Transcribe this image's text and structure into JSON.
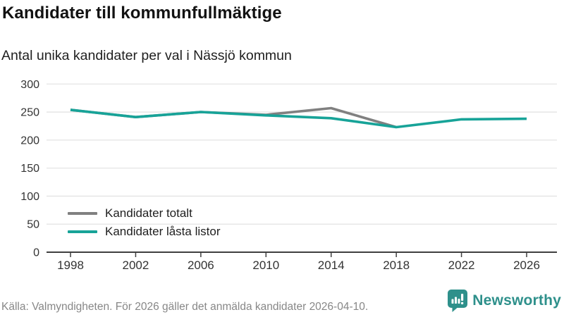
{
  "header": {
    "title": "Kandidater till kommunfullmäktige",
    "subtitle": "Antal unika kandidater per val i Nässjö kommun"
  },
  "chart_data": {
    "type": "line",
    "title": "Kandidater till kommunfullmäktige",
    "subtitle": "Antal unika kandidater per val i Nässjö kommun",
    "categories": [
      "1998",
      "2002",
      "2006",
      "2010",
      "2014",
      "2018",
      "2022",
      "2026"
    ],
    "series": [
      {
        "name": "Kandidater totalt",
        "color": "#808080",
        "values": [
          254,
          241,
          250,
          245,
          257,
          223,
          null,
          null
        ]
      },
      {
        "name": "Kandidater låsta listor",
        "color": "#17a398",
        "values": [
          254,
          241,
          250,
          244,
          239,
          223,
          237,
          238
        ]
      }
    ],
    "xlabel": "",
    "ylabel": "",
    "ylim": [
      0,
      300
    ],
    "yticks": [
      0,
      50,
      100,
      150,
      200,
      250,
      300
    ],
    "grid": "horizontal",
    "legend_position": "inside-bottom-left"
  },
  "footer": {
    "source": "Källa: Valmyndigheten. För 2026 gäller det anmälda kandidater 2026-04-10.",
    "brand_name": "Newsworthy"
  },
  "colors": {
    "series_total": "#808080",
    "series_locked_lists": "#17a398",
    "brand_teal": "#2e908b",
    "gridline": "#e4e4e4",
    "axis": "#3f3f3f",
    "tick_label": "#333333"
  }
}
